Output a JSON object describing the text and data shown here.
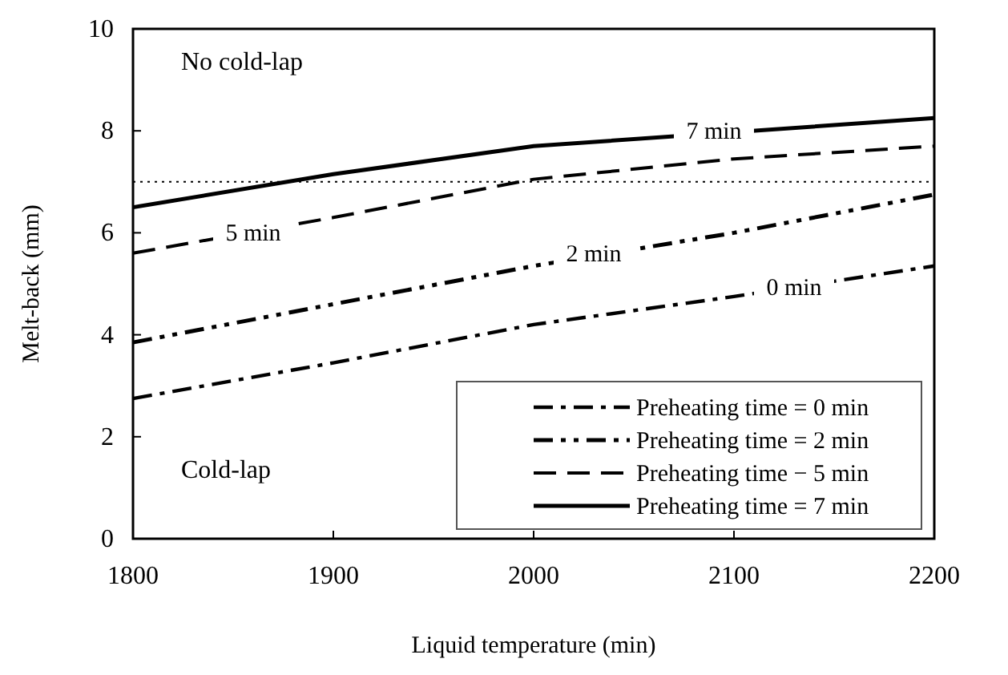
{
  "chart_data": {
    "type": "line",
    "xlabel": "Liquid temperature (min)",
    "ylabel": "Melt-back (mm)",
    "x": [
      1800,
      1900,
      2000,
      2100,
      2200
    ],
    "series": [
      {
        "name": "Preheating time = 0 min",
        "color": "#000000",
        "line_style": "dashdot",
        "values": [
          2.75,
          3.45,
          4.2,
          4.75,
          5.35
        ]
      },
      {
        "name": "Preheating time = 2 min",
        "color": "#000000",
        "line_style": "dashdotdot",
        "values": [
          3.85,
          4.6,
          5.35,
          6.0,
          6.75
        ]
      },
      {
        "name": "Preheating time − 5 min",
        "color": "#000000",
        "line_style": "dashed",
        "values": [
          5.6,
          6.3,
          7.05,
          7.45,
          7.7
        ]
      },
      {
        "name": "Preheating time = 7 min",
        "color": "#000000",
        "line_style": "solid",
        "x": [
          1800,
          1900,
          2000,
          2200
        ],
        "values": [
          6.5,
          7.15,
          7.7,
          8.25
        ]
      }
    ],
    "xlim": [
      1800,
      2200
    ],
    "xticks": [
      1800,
      1900,
      2000,
      2100,
      2200
    ],
    "ylim": [
      0,
      10
    ],
    "yticks": [
      0,
      2,
      4,
      6,
      8,
      10
    ],
    "grid": false,
    "legend": "bottom right",
    "ref_lines": [
      {
        "axis": "y",
        "value": 7,
        "color": "#000000",
        "line_style": "dotted"
      }
    ],
    "annotations": [
      "No cold-lap",
      "Cold-lap",
      {
        "text": "7 min",
        "x": 2090,
        "y": 8.0
      },
      {
        "text": "5 min",
        "x": 1860,
        "y": 6.0
      },
      {
        "text": "2 min",
        "x": 2030,
        "y": 5.6
      },
      {
        "text": "0 min",
        "x": 2130,
        "y": 4.93
      }
    ]
  }
}
